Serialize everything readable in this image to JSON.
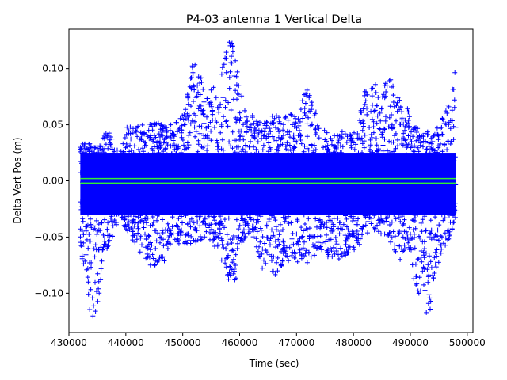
{
  "chart_data": {
    "type": "scatter",
    "title": "P4-03 antenna 1 Vertical Delta",
    "xlabel": "Time (sec)",
    "ylabel": "Delta Vert Pos (m)",
    "xlim": [
      430000,
      501000
    ],
    "ylim": [
      -0.135,
      0.135
    ],
    "xticks": [
      430000,
      440000,
      450000,
      460000,
      470000,
      480000,
      490000,
      500000
    ],
    "xtick_labels": [
      "430000",
      "440000",
      "450000",
      "460000",
      "470000",
      "480000",
      "490000",
      "500000"
    ],
    "yticks": [
      -0.1,
      -0.05,
      0.0,
      0.05,
      0.1
    ],
    "ytick_labels": [
      "−0.10",
      "−0.05",
      "0.00",
      "0.05",
      "0.10"
    ],
    "grid": false,
    "colors": {
      "points": "#0000ff",
      "band": "#33ee33",
      "axes": "#000000"
    },
    "series": [
      {
        "marker": "+",
        "color": "#0000ff",
        "x_range": [
          432000,
          498000
        ],
        "envelope": {
          "x": [
            432000,
            433000,
            434000,
            435000,
            436000,
            437000,
            438000,
            439000,
            440000,
            442000,
            444000,
            446000,
            448000,
            450000,
            452000,
            454000,
            456000,
            458000,
            459000,
            460000,
            462000,
            464000,
            466000,
            468000,
            470000,
            472000,
            474000,
            476000,
            478000,
            480000,
            482000,
            484000,
            486000,
            488000,
            490000,
            492000,
            493000,
            494000,
            496000,
            498000
          ],
          "upper": [
            0.03,
            0.04,
            0.03,
            0.03,
            0.04,
            0.045,
            0.035,
            0.02,
            0.05,
            0.05,
            0.05,
            0.055,
            0.05,
            0.06,
            0.11,
            0.08,
            0.09,
            0.13,
            0.12,
            0.08,
            0.06,
            0.05,
            0.06,
            0.06,
            0.06,
            0.085,
            0.05,
            0.04,
            0.045,
            0.04,
            0.08,
            0.09,
            0.095,
            0.08,
            0.06,
            0.04,
            0.045,
            0.04,
            0.06,
            0.1
          ],
          "lower": [
            -0.06,
            -0.09,
            -0.13,
            -0.12,
            -0.07,
            -0.06,
            -0.05,
            -0.03,
            -0.045,
            -0.06,
            -0.075,
            -0.08,
            -0.06,
            -0.055,
            -0.06,
            -0.05,
            -0.06,
            -0.09,
            -0.11,
            -0.06,
            -0.045,
            -0.08,
            -0.09,
            -0.07,
            -0.075,
            -0.075,
            -0.06,
            -0.07,
            -0.07,
            -0.065,
            -0.05,
            -0.045,
            -0.05,
            -0.07,
            -0.08,
            -0.11,
            -0.13,
            -0.09,
            -0.06,
            -0.04
          ]
        }
      },
      {
        "type": "line",
        "color": "#33ee33",
        "x": [
          432000,
          498000
        ],
        "upper": [
          0.002,
          0.002
        ],
        "lower": [
          -0.002,
          -0.002
        ]
      }
    ]
  }
}
